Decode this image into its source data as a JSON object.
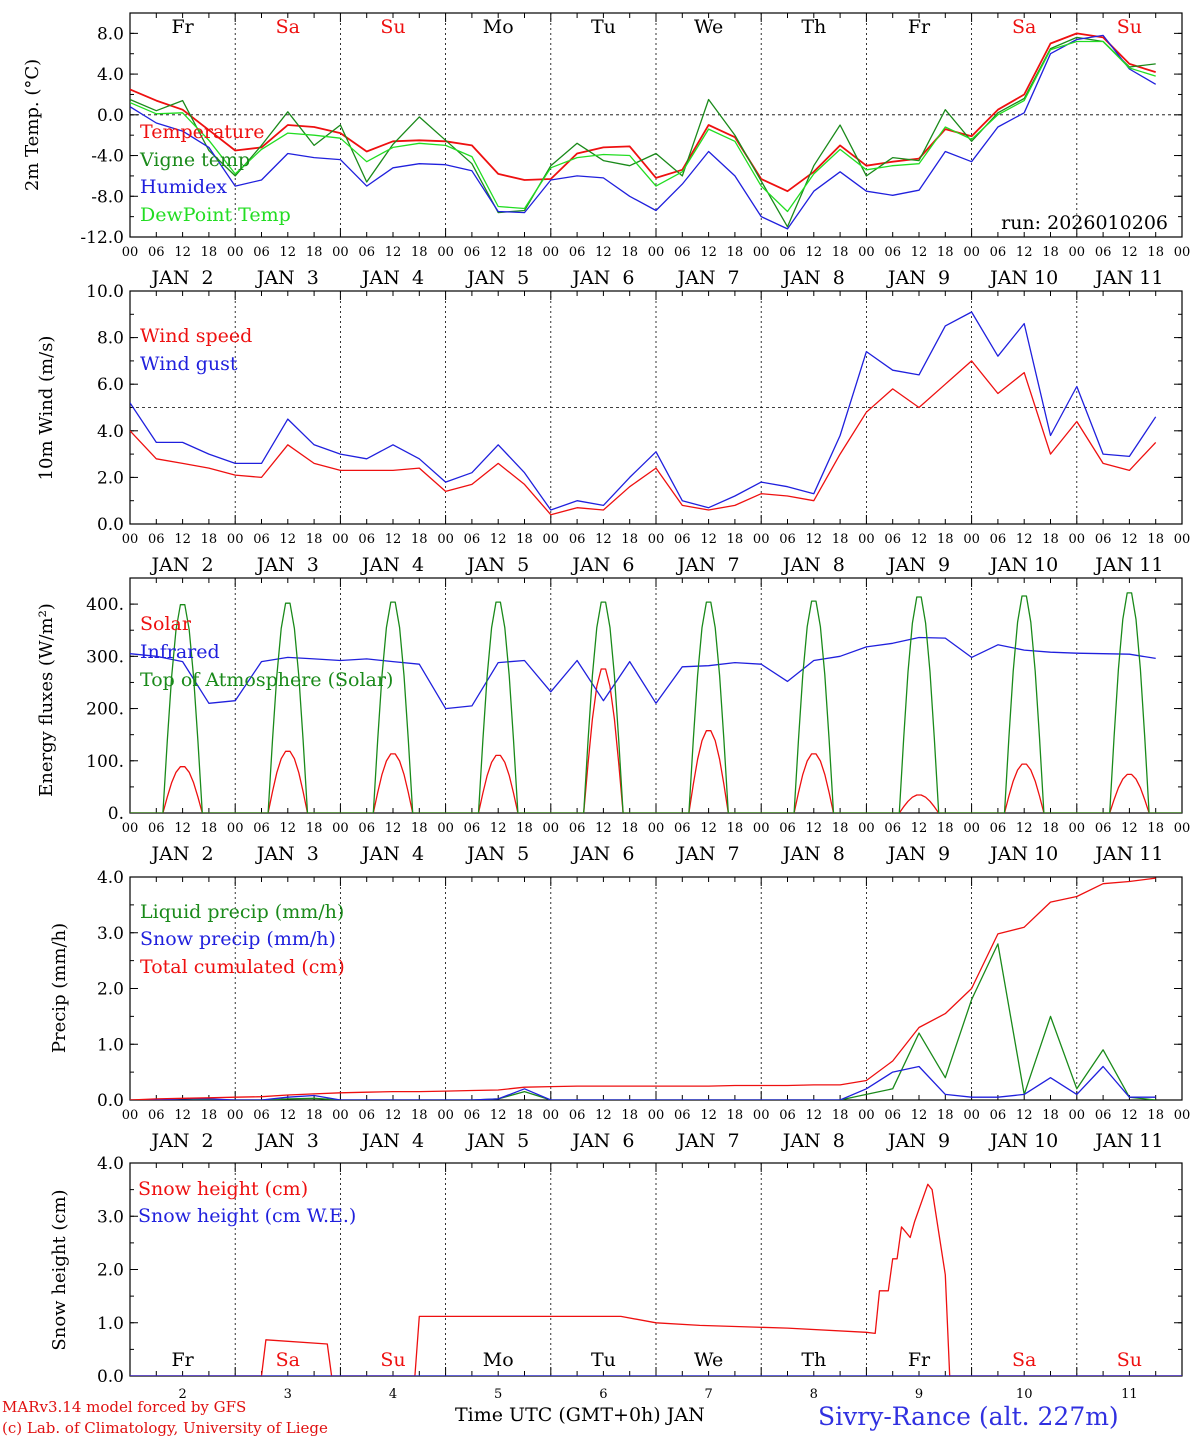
{
  "chart_data": [
    {
      "type": "line",
      "ylabel": "2m Temp. (°C)",
      "ylim": [
        -12,
        10
      ],
      "yticks": [
        8,
        4,
        0,
        -4,
        -8,
        -12
      ],
      "ytick_labels": [
        "8.0",
        "4.0",
        "0.0",
        "-4.0",
        "-8.0",
        "-12.0"
      ],
      "reference_line": 0,
      "annotation": "run: 2026010206",
      "x": [
        0,
        6,
        12,
        18,
        24,
        30,
        36,
        42,
        48,
        54,
        60,
        66,
        72,
        78,
        84,
        90,
        96,
        102,
        108,
        114,
        120,
        126,
        132,
        138,
        144,
        150,
        156,
        162,
        168,
        174,
        180,
        186,
        192,
        198,
        204,
        210,
        216,
        222,
        228,
        234,
        234
      ],
      "series": [
        {
          "name": "Temperature",
          "color": "#ee1010",
          "values": [
            2.5,
            1.4,
            0.5,
            -1.5,
            -3.5,
            -3.2,
            -1.0,
            -1.2,
            -1.8,
            -3.6,
            -2.6,
            -2.5,
            -2.6,
            -3.0,
            -5.8,
            -6.4,
            -6.3,
            -3.8,
            -3.2,
            -3.1,
            -6.2,
            -5.4,
            -1.0,
            -2.2,
            -6.3,
            -7.5,
            -5.6,
            -3.0,
            -5.0,
            -4.6,
            -4.3,
            -1.4,
            -2.1,
            0.5,
            2.0,
            7.0,
            8.0,
            7.6,
            5.0,
            4.2,
            null
          ]
        },
        {
          "name": "Vigne temp",
          "color": "#1a8a1a",
          "values": [
            1.5,
            0.4,
            1.4,
            -3.5,
            -6.0,
            -3.0,
            0.3,
            -3.0,
            -1.0,
            -6.6,
            -2.9,
            -0.2,
            -2.5,
            -4.8,
            -9.6,
            -9.4,
            -5.0,
            -2.8,
            -4.5,
            -5.0,
            -3.8,
            -6.0,
            1.5,
            -2.0,
            -6.5,
            -11.0,
            -5.0,
            -1.0,
            -6.0,
            -4.2,
            -4.5,
            0.5,
            -2.6,
            0.2,
            1.6,
            6.5,
            7.6,
            7.2,
            4.7,
            5.0,
            null
          ]
        },
        {
          "name": "Humidex",
          "color": "#2020dd",
          "values": [
            0.8,
            -0.8,
            -1.6,
            -3.2,
            -7.0,
            -6.4,
            -3.8,
            -4.2,
            -4.4,
            -7.0,
            -5.2,
            -4.8,
            -4.9,
            -5.5,
            -9.5,
            -9.6,
            -6.4,
            -6.0,
            -6.2,
            -8.0,
            -9.4,
            -6.8,
            -3.6,
            -6.0,
            -10.0,
            -11.2,
            -7.5,
            -5.6,
            -7.5,
            -7.9,
            -7.4,
            -3.6,
            -4.6,
            -1.2,
            0.2,
            6.0,
            7.4,
            7.8,
            4.5,
            3.0,
            null
          ]
        },
        {
          "name": "DewPoint Temp",
          "color": "#22dd22",
          "values": [
            1.2,
            0.1,
            0.2,
            -2.5,
            -5.8,
            -3.4,
            -1.8,
            -2.0,
            -2.3,
            -4.6,
            -3.2,
            -2.8,
            -3.0,
            -4.1,
            -9.0,
            -9.2,
            -5.2,
            -4.2,
            -3.9,
            -4.0,
            -7.0,
            -5.6,
            -1.4,
            -2.6,
            -7.0,
            -9.5,
            -5.8,
            -3.4,
            -5.4,
            -5.0,
            -4.8,
            -1.2,
            -2.4,
            0.0,
            1.4,
            6.4,
            7.2,
            7.2,
            4.6,
            3.8,
            null
          ]
        }
      ]
    },
    {
      "type": "line",
      "ylabel": "10m Wind (m/s)",
      "ylim": [
        0,
        10
      ],
      "yticks": [
        0,
        2,
        4,
        6,
        8,
        10
      ],
      "ytick_labels": [
        "0.0",
        "2.0",
        "4.0",
        "6.0",
        "8.0",
        "10.0"
      ],
      "reference_line": 5,
      "x": [
        0,
        6,
        12,
        18,
        24,
        30,
        36,
        42,
        48,
        54,
        60,
        66,
        72,
        78,
        84,
        90,
        96,
        102,
        108,
        114,
        120,
        126,
        132,
        138,
        144,
        150,
        156,
        162,
        168,
        174,
        180,
        186,
        192,
        198,
        204,
        210,
        216,
        222,
        228,
        234
      ],
      "series": [
        {
          "name": "Wind speed",
          "color": "#ee1010",
          "values": [
            4.0,
            2.8,
            2.6,
            2.4,
            2.1,
            2.0,
            3.4,
            2.6,
            2.3,
            2.3,
            2.3,
            2.4,
            1.4,
            1.7,
            2.6,
            1.7,
            0.4,
            0.7,
            0.6,
            1.6,
            2.4,
            0.8,
            0.6,
            0.8,
            1.3,
            1.2,
            1.0,
            3.0,
            4.8,
            5.8,
            5.0,
            6.0,
            7.0,
            5.6,
            6.5,
            3.0,
            4.4,
            2.6,
            2.3,
            3.5
          ]
        },
        {
          "name": "Wind gust",
          "color": "#2020dd",
          "values": [
            5.2,
            3.5,
            3.5,
            3.0,
            2.6,
            2.6,
            4.5,
            3.4,
            3.0,
            2.8,
            3.4,
            2.8,
            1.8,
            2.2,
            3.4,
            2.2,
            0.6,
            1.0,
            0.8,
            2.0,
            3.1,
            1.0,
            0.7,
            1.2,
            1.8,
            1.6,
            1.3,
            3.8,
            7.4,
            6.6,
            6.4,
            8.5,
            9.1,
            7.2,
            8.6,
            3.8,
            5.9,
            3.0,
            2.9,
            4.6
          ]
        }
      ]
    },
    {
      "type": "line",
      "ylabel": "Energy fluxes (W/m²)",
      "ylim": [
        0,
        450
      ],
      "yticks": [
        0,
        100,
        200,
        300,
        400
      ],
      "ytick_labels": [
        "0.",
        "100.",
        "200.",
        "300.",
        "400."
      ],
      "x": [
        0,
        6,
        12,
        18,
        24,
        30,
        36,
        42,
        48,
        54,
        60,
        66,
        72,
        78,
        84,
        90,
        96,
        102,
        108,
        114,
        120,
        126,
        132,
        138,
        144,
        150,
        156,
        162,
        168,
        174,
        180,
        186,
        192,
        198,
        204,
        210,
        216,
        222,
        228,
        234
      ],
      "series": [
        {
          "name": "Solar",
          "color": "#ee1010",
          "daily_peak": [
            90,
            120,
            115,
            112,
            280,
            160,
            115,
            35,
            95,
            75
          ]
        },
        {
          "name": "Infrared",
          "color": "#2020dd",
          "values": [
            305,
            300,
            290,
            210,
            215,
            290,
            298,
            295,
            292,
            295,
            290,
            285,
            200,
            205,
            288,
            292,
            232,
            292,
            215,
            290,
            210,
            280,
            282,
            288,
            285,
            252,
            292,
            300,
            318,
            325,
            336,
            335,
            298,
            322,
            312,
            308,
            306,
            305,
            304,
            296
          ]
        },
        {
          "name": "Top of Atmosphere (Solar)",
          "color": "#1a8a1a",
          "daily_peak": [
            405,
            408,
            410,
            410,
            410,
            410,
            412,
            420,
            422,
            428
          ]
        }
      ]
    },
    {
      "type": "line",
      "ylabel": "Precip (mm/h)",
      "ylim": [
        0,
        4
      ],
      "yticks": [
        0,
        1,
        2,
        3,
        4
      ],
      "ytick_labels": [
        "0.0",
        "1.0",
        "2.0",
        "3.0",
        "4.0"
      ],
      "x": [
        0,
        6,
        12,
        18,
        24,
        30,
        36,
        42,
        48,
        54,
        60,
        66,
        72,
        78,
        84,
        90,
        96,
        102,
        108,
        114,
        120,
        126,
        132,
        138,
        144,
        150,
        156,
        162,
        168,
        174,
        180,
        186,
        192,
        198,
        204,
        210,
        216,
        222,
        228,
        234
      ],
      "series": [
        {
          "name": "Liquid precip (mm/h)",
          "color": "#1a8a1a",
          "values": [
            0,
            0,
            0.02,
            0,
            0,
            0,
            0.02,
            0.03,
            0,
            0,
            0,
            0,
            0,
            0,
            0.02,
            0.15,
            0,
            0,
            0,
            0,
            0,
            0,
            0,
            0,
            0,
            0,
            0,
            0,
            0.1,
            0.2,
            1.2,
            0.4,
            1.8,
            2.8,
            0.1,
            1.5,
            0.2,
            0.9,
            0.05,
            0
          ]
        },
        {
          "name": "Snow precip (mm/h)",
          "color": "#2020dd",
          "values": [
            0,
            0,
            0.02,
            0.02,
            0,
            0,
            0.05,
            0.08,
            0,
            0,
            0,
            0,
            0,
            0,
            0.02,
            0.2,
            0,
            0,
            0,
            0,
            0,
            0,
            0,
            0,
            0,
            0,
            0,
            0,
            0.2,
            0.5,
            0.6,
            0.1,
            0.05,
            0.05,
            0.1,
            0.4,
            0.1,
            0.6,
            0.05,
            0.05
          ]
        },
        {
          "name": "Total cumulated (cm)",
          "color": "#ee1010",
          "values": [
            0,
            0.02,
            0.03,
            0.04,
            0.05,
            0.06,
            0.09,
            0.11,
            0.13,
            0.14,
            0.15,
            0.15,
            0.16,
            0.17,
            0.18,
            0.23,
            0.24,
            0.25,
            0.25,
            0.25,
            0.25,
            0.25,
            0.25,
            0.26,
            0.26,
            0.26,
            0.27,
            0.27,
            0.35,
            0.7,
            1.3,
            1.55,
            2.0,
            2.98,
            3.1,
            3.55,
            3.65,
            3.88,
            3.92,
            3.98
          ]
        }
      ]
    },
    {
      "type": "line",
      "ylabel": "Snow height (cm)",
      "ylim": [
        0,
        4
      ],
      "yticks": [
        0,
        1,
        2,
        3,
        4
      ],
      "ytick_labels": [
        "0.0",
        "1.0",
        "2.0",
        "3.0",
        "4.0"
      ],
      "x": [
        0,
        24,
        30,
        31,
        45,
        46,
        48,
        65,
        66,
        76,
        77,
        78,
        96,
        105,
        112,
        120,
        130,
        150,
        168,
        170,
        171,
        173,
        174,
        175,
        176,
        177,
        178,
        179,
        182,
        183,
        186,
        187,
        188,
        240
      ],
      "series": [
        {
          "name": "Snow height (cm)",
          "color": "#ee1010",
          "values": [
            0,
            0,
            0,
            0.68,
            0.6,
            0,
            0,
            0,
            1.12,
            1.12,
            1.12,
            1.12,
            1.12,
            1.12,
            1.12,
            1.0,
            0.95,
            0.9,
            0.82,
            0.8,
            1.6,
            1.6,
            2.2,
            2.2,
            2.8,
            2.7,
            2.6,
            2.9,
            3.6,
            3.5,
            1.9,
            0,
            0,
            0
          ]
        },
        {
          "name": "Snow height (cm W.E.)",
          "color": "#2020dd",
          "values": [
            0,
            0,
            0,
            0,
            0,
            0,
            0,
            0,
            0,
            0,
            0,
            0,
            0,
            0,
            0,
            0,
            0,
            0,
            0,
            0,
            0,
            0,
            0,
            0,
            0,
            0,
            0,
            0,
            0,
            0,
            0,
            0,
            0,
            0
          ]
        }
      ],
      "date_ticks": [
        "2",
        "3",
        "4",
        "5",
        "6",
        "7",
        "8",
        "9",
        "10",
        "11"
      ]
    }
  ],
  "days": [
    {
      "abbr": "Fr",
      "weekend": false
    },
    {
      "abbr": "Sa",
      "weekend": true
    },
    {
      "abbr": "Su",
      "weekend": true
    },
    {
      "abbr": "Mo",
      "weekend": false
    },
    {
      "abbr": "Tu",
      "weekend": false
    },
    {
      "abbr": "We",
      "weekend": false
    },
    {
      "abbr": "Th",
      "weekend": false
    },
    {
      "abbr": "Fr",
      "weekend": false
    },
    {
      "abbr": "Sa",
      "weekend": true
    },
    {
      "abbr": "Su",
      "weekend": true
    }
  ],
  "hour_ticks": [
    "00",
    "06",
    "12",
    "18"
  ],
  "final_tick": "00",
  "date_labels": [
    "JAN  2",
    "JAN  3",
    "JAN  4",
    "JAN  5",
    "JAN  6",
    "JAN  7",
    "JAN  8",
    "JAN  9",
    "JAN 10",
    "JAN 11"
  ],
  "x_title": "Time UTC (GMT+0h) JAN",
  "credits": [
    "MARv3.14 model forced by GFS",
    "(c) Lab. of Climatology, University of Liege"
  ],
  "station": "Sivry-Rance (alt. 227m)",
  "colors": {
    "weekday": "#000000",
    "weekend": "#ee1010",
    "axis": "#000000"
  }
}
